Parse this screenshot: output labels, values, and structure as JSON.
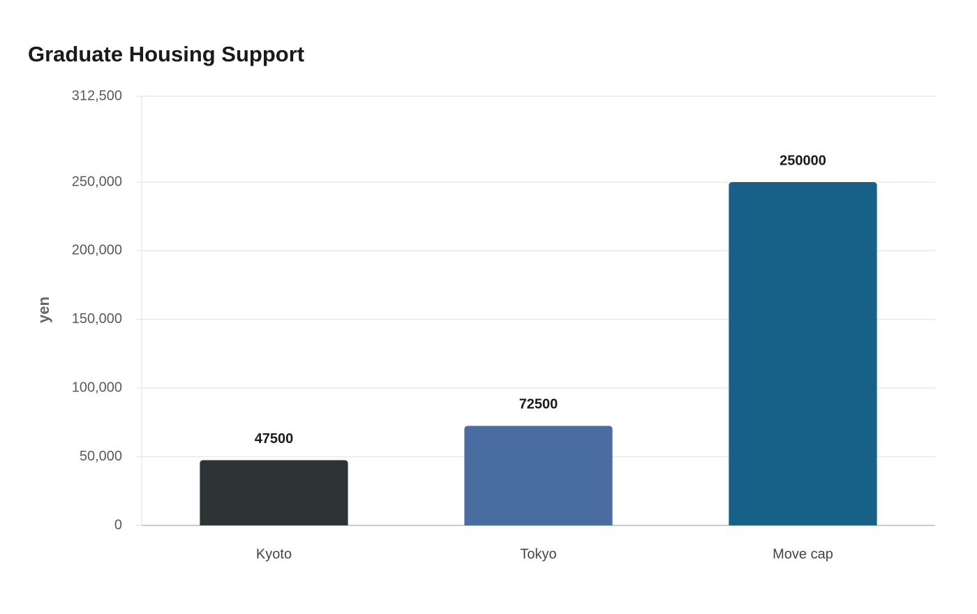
{
  "chart_data": {
    "type": "bar",
    "title": "Graduate Housing Support",
    "y_label": "yen",
    "categories": [
      "Kyoto",
      "Tokyo",
      "Move cap"
    ],
    "values": [
      47500,
      72500,
      250000
    ],
    "colors": [
      "#2d3436",
      "#4a6da1",
      "#176087"
    ],
    "ylim": [
      0,
      312500
    ],
    "yticks": [
      0,
      {
        "value": 50000,
        "label": "50,000"
      },
      {
        "value": 100000,
        "label": "100,000"
      },
      {
        "value": 150000,
        "label": "150,000"
      },
      {
        "value": 200000,
        "label": "200,000"
      },
      {
        "value": 250000,
        "label": "250,000"
      },
      {
        "value": 312500,
        "label": "312,500"
      }
    ],
    "grid": true
  }
}
